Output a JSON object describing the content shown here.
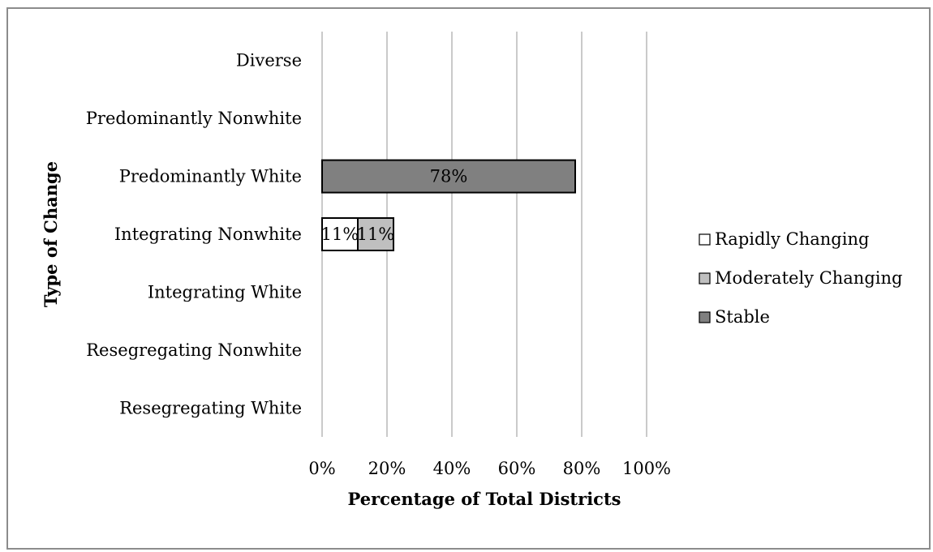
{
  "chart_data": {
    "type": "bar",
    "orientation": "horizontal",
    "stacked": true,
    "percent_stacked": true,
    "categories": [
      "Diverse",
      "Predominantly Nonwhite",
      "Predominantly White",
      "Integrating Nonwhite",
      "Integrating White",
      "Resegregating Nonwhite",
      "Resegregating White"
    ],
    "series": [
      {
        "name": "Rapidly Changing",
        "color": "#ffffff",
        "values": [
          0,
          0,
          0,
          11,
          0,
          0,
          0
        ]
      },
      {
        "name": "Moderately Changing",
        "color": "#bfbfbf",
        "values": [
          0,
          0,
          0,
          11,
          0,
          0,
          0
        ]
      },
      {
        "name": "Stable",
        "color": "#808080",
        "values": [
          0,
          0,
          78,
          0,
          0,
          0,
          0
        ]
      }
    ],
    "data_labels": [
      {
        "text": "78%",
        "category": "Predominantly White",
        "series": "Stable"
      },
      {
        "text": "11%",
        "category": "Integrating Nonwhite",
        "series": "Rapidly Changing"
      },
      {
        "text": "11%",
        "category": "Integrating Nonwhite",
        "series": "Moderately Changing"
      }
    ],
    "xlabel": "Percentage of Total Districts",
    "ylabel": "Type of Change",
    "xlim": [
      0,
      100
    ],
    "xticks": [
      "0%",
      "20%",
      "40%",
      "60%",
      "80%",
      "100%"
    ],
    "xtick_values": [
      0,
      20,
      40,
      60,
      80,
      100
    ],
    "grid": "vertical",
    "legend_position": "right"
  }
}
